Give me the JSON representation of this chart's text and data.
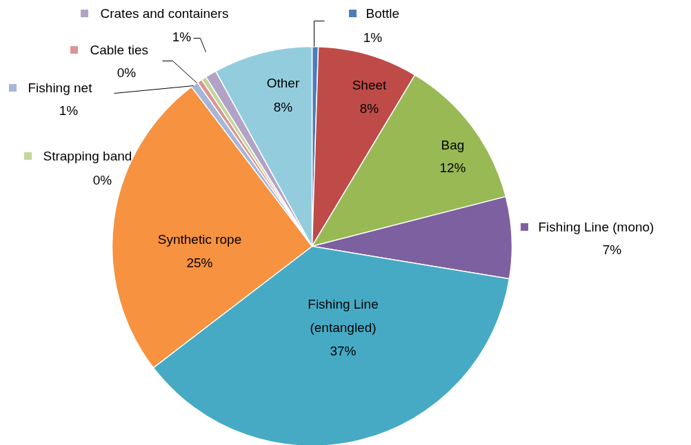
{
  "chart_data": {
    "type": "pie",
    "categories": [
      "Bottle",
      "Sheet",
      "Bag",
      "Fishing Line (mono)",
      "Fishing Line (entangled)",
      "Synthetic rope",
      "Fishing net",
      "Cable ties",
      "Strapping band",
      "Crates and containers",
      "Other"
    ],
    "values": [
      0.5,
      8.1,
      12.4,
      6.6,
      37.0,
      25.1,
      0.6,
      0.4,
      0.4,
      0.9,
      8.0
    ],
    "value_labels": [
      "1%",
      "8%",
      "12%",
      "7%",
      "37%",
      "25%",
      "1%",
      "0%",
      "0%",
      "1%",
      "8%"
    ],
    "legend": "top left",
    "colors": [
      "#4a7ebb",
      "#be4b48",
      "#98b954",
      "#7d60a0",
      "#46aac5",
      "#f69240",
      "#a5b6d9",
      "#d99694",
      "#c3d69b",
      "#b3a2c7",
      "#93cddd"
    ]
  }
}
